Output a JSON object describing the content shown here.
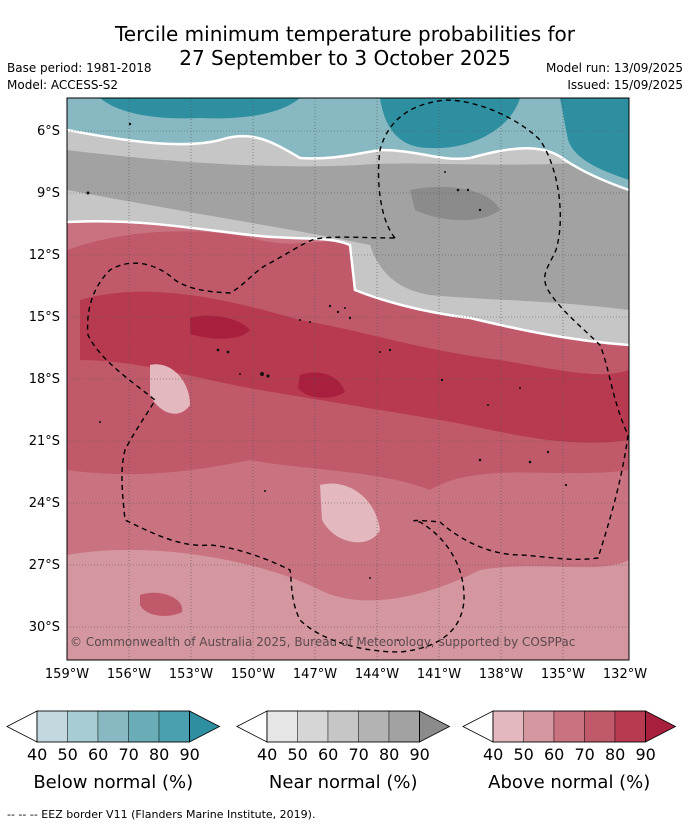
{
  "title_line1": "Tercile minimum temperature probabilities for",
  "title_line2": "27 September to 3 October 2025",
  "base_period": "Base period: 1981-2018",
  "model": "Model: ACCESS-S2",
  "model_run": "Model run: 13/09/2025",
  "issued": "Issued: 15/09/2025",
  "copyright": "© Commonwealth of Australia 2025, Bureau of Meteorology, supported by COSPPac",
  "lat_labels": [
    "6°S",
    "9°S",
    "12°S",
    "15°S",
    "18°S",
    "21°S",
    "24°S",
    "27°S",
    "30°S"
  ],
  "lon_labels": [
    "159°W",
    "156°W",
    "153°W",
    "150°W",
    "147°W",
    "144°W",
    "141°W",
    "138°W",
    "135°W",
    "132°W"
  ],
  "colorbars": [
    {
      "label": "Below normal (%)",
      "ticks": [
        "40",
        "50",
        "60",
        "70",
        "80",
        "90"
      ],
      "colors": [
        "#c4d9df",
        "#a7ccd3",
        "#88b9c2",
        "#6badb7",
        "#4aa0ae"
      ],
      "over": "#2e8fa0"
    },
    {
      "label": "Near normal (%)",
      "ticks": [
        "40",
        "50",
        "60",
        "70",
        "80",
        "90"
      ],
      "colors": [
        "#e6e6e6",
        "#d6d6d6",
        "#c6c6c6",
        "#b3b3b3",
        "#a2a2a2"
      ],
      "over": "#8b8b8b"
    },
    {
      "label": "Above normal (%)",
      "ticks": [
        "40",
        "50",
        "60",
        "70",
        "80",
        "90"
      ],
      "colors": [
        "#e3b8bf",
        "#d4969f",
        "#c97280",
        "#c0596a",
        "#b83a50"
      ],
      "over": "#a8203e"
    }
  ],
  "eez_note": "--  --  -- EEZ border V11 (Flanders Marine Institute, 2019)."
}
